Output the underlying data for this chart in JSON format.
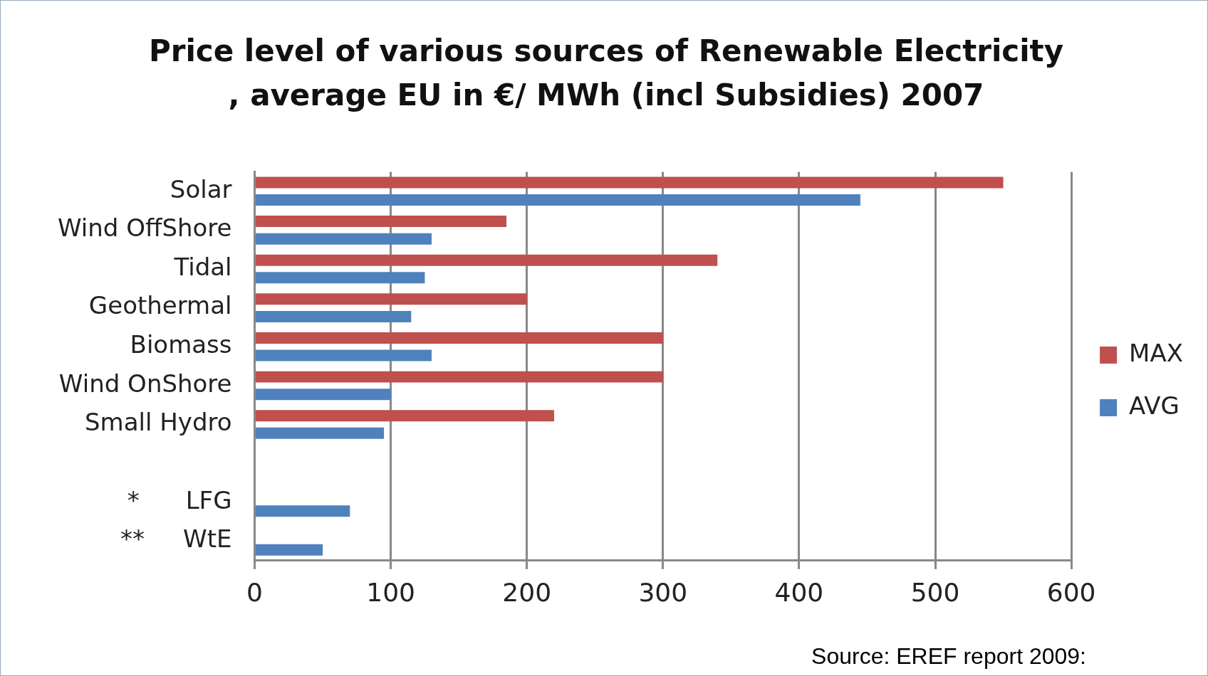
{
  "chart_data": {
    "type": "bar",
    "orientation": "horizontal",
    "title": "Price level of various sources of Renewable Electricity , average EU in €/ MWh (incl Subsidies)  2007",
    "categories": [
      "Solar",
      "Wind OffShore",
      "Tidal",
      "Geothermal",
      "Biomass",
      "Wind OnShore",
      "Small Hydro",
      null,
      "*      LFG",
      "**     WtE"
    ],
    "series": [
      {
        "name": "MAX",
        "color": "#c0504d",
        "values": [
          550,
          185,
          340,
          200,
          300,
          300,
          220,
          null,
          null,
          null
        ]
      },
      {
        "name": "AVG",
        "color": "#4f81bd",
        "values": [
          445,
          130,
          125,
          115,
          130,
          100,
          95,
          null,
          70,
          50
        ]
      }
    ],
    "xlim": [
      0,
      600
    ],
    "xticks": [
      0,
      100,
      200,
      300,
      400,
      500,
      600
    ],
    "grid": "x",
    "legend": "right",
    "annotations": [
      "Source: EREF report 2009:"
    ]
  }
}
